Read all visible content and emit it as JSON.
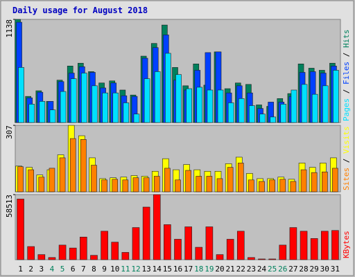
{
  "chart_data": {
    "type": "bar",
    "title": "Daily usage for August 2018",
    "categories": [
      "1",
      "2",
      "3",
      "4",
      "5",
      "6",
      "7",
      "8",
      "9",
      "10",
      "11",
      "12",
      "13",
      "14",
      "15",
      "16",
      "17",
      "18",
      "19",
      "20",
      "21",
      "22",
      "23",
      "24",
      "25",
      "26",
      "27",
      "28",
      "29",
      "30",
      "31"
    ],
    "category_colors": [
      "#000000",
      "#000000",
      "#000000",
      "#00805c",
      "#00805c",
      "#000000",
      "#000000",
      "#000000",
      "#000000",
      "#000000",
      "#00805c",
      "#00805c",
      "#000000",
      "#000000",
      "#000000",
      "#000000",
      "#000000",
      "#00805c",
      "#00805c",
      "#000000",
      "#000000",
      "#000000",
      "#000000",
      "#000000",
      "#00805c",
      "#00805c",
      "#000000",
      "#000000",
      "#000000",
      "#000000",
      "#000000"
    ],
    "legend_separator": "/",
    "panels": [
      {
        "ylim": [
          0,
          1138
        ],
        "yticks": [
          1138
        ],
        "series": [
          {
            "name": "Hits",
            "color": "#00805c",
            "values": [
              1138,
              289,
              351,
              234,
              468,
              624,
              655,
              562,
              437,
              460,
              359,
              304,
              733,
              873,
              1076,
              608,
              406,
              647,
              413,
              780,
              374,
              437,
              421,
              195,
              179,
              265,
              320,
              647,
              600,
              577,
              655
            ]
          },
          {
            "name": "Files",
            "color": "#0040ff",
            "values": [
              1107,
              273,
              335,
              234,
              452,
              546,
              616,
              554,
              382,
              437,
              296,
              289,
              710,
              827,
              967,
              468,
              359,
              577,
              772,
              780,
              327,
              406,
              327,
              156,
              226,
              226,
              289,
              554,
              562,
              546,
              624
            ]
          },
          {
            "name": "Pages",
            "color": "#00e0ff",
            "values": [
              608,
              203,
              234,
              140,
              343,
              484,
              546,
              406,
              327,
              327,
              218,
              94,
              484,
              562,
              764,
              530,
              374,
              390,
              359,
              359,
              218,
              265,
              187,
              94,
              62,
              203,
              359,
              421,
              312,
              406,
              577
            ]
          }
        ]
      },
      {
        "ylim": [
          0,
          307
        ],
        "yticks": [
          307
        ],
        "series": [
          {
            "name": "Visits",
            "color": "#ffff00",
            "values": [
              119,
              113,
              78,
              102,
              171,
              307,
              259,
              157,
              61,
              65,
              68,
              75,
              72,
              95,
              153,
              102,
              126,
              102,
              95,
              95,
              130,
              160,
              85,
              61,
              61,
              68,
              58,
              133,
              113,
              133,
              157
            ]
          },
          {
            "name": "Sites",
            "color": "#ff8000",
            "values": [
              116,
              102,
              68,
              109,
              157,
              246,
              242,
              123,
              55,
              58,
              55,
              65,
              65,
              72,
              109,
              55,
              99,
              72,
              72,
              61,
              113,
              133,
              55,
              48,
              55,
              58,
              48,
              102,
              89,
              92,
              109
            ]
          }
        ]
      },
      {
        "ylim": [
          0,
          58513
        ],
        "yticks": [
          58513
        ],
        "series": [
          {
            "name": "KBytes",
            "color": "#ff0000",
            "values": [
              54531,
              11826,
              4600,
              1971,
              13140,
              10512,
              20367,
              3942,
              25623,
              15768,
              6570,
              28908,
              47304,
              58513,
              31536,
              18396,
              29565,
              11169,
              29565,
              4600,
              18396,
              25623,
              1971,
              657,
              657,
              13140,
              28908,
              25623,
              19053,
              25623,
              26280
            ]
          }
        ]
      }
    ]
  }
}
